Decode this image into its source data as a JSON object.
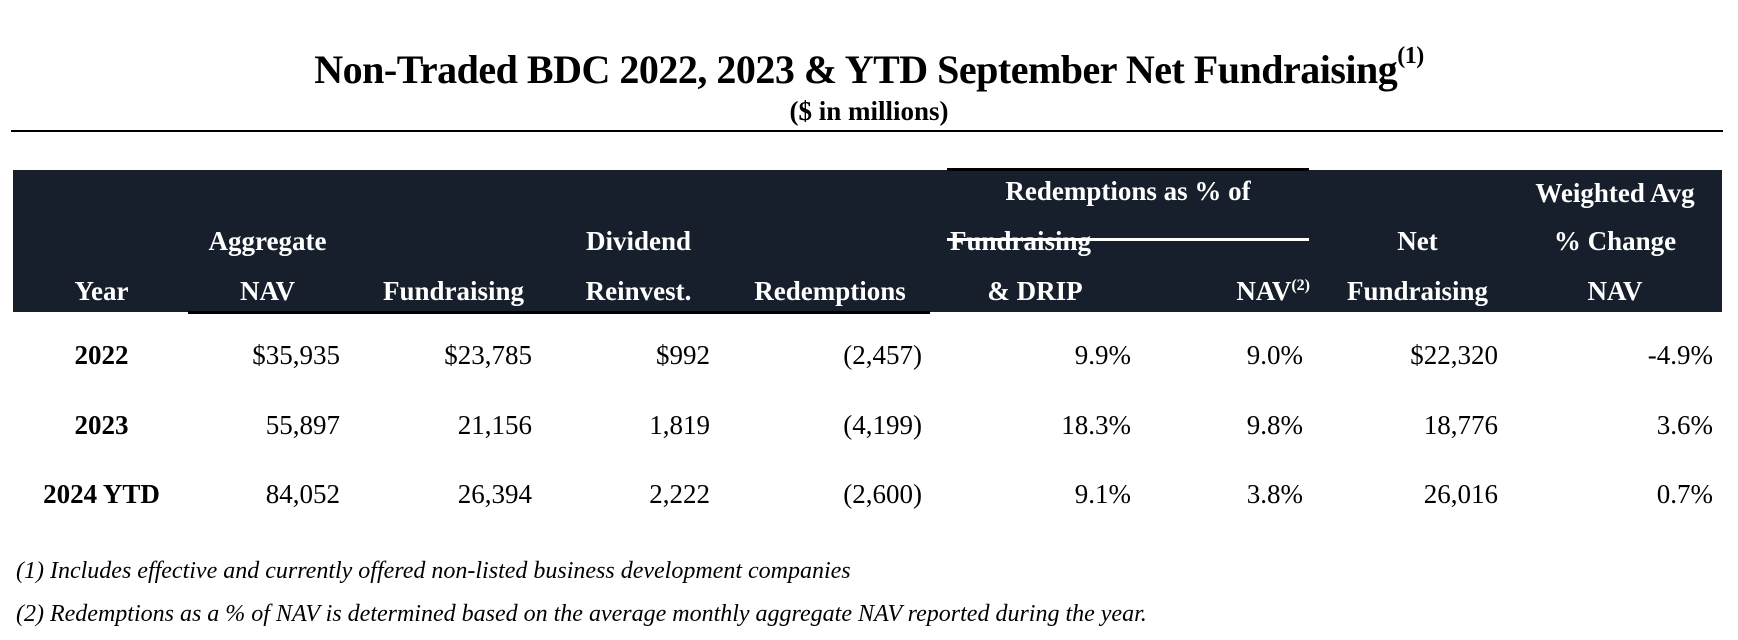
{
  "title": "Non-Traded BDC 2022, 2023 & YTD September Net Fundraising",
  "title_note": "(1)",
  "subtitle": "($ in millions)",
  "header": {
    "group": "Redemptions as % of",
    "year": "Year",
    "nav": [
      "Aggregate",
      "NAV"
    ],
    "fundraising": "Fundraising",
    "dividend": [
      "Dividend",
      "Reinvest."
    ],
    "redemptions": "Redemptions",
    "pct_fund": [
      "Fundraising",
      "& DRIP"
    ],
    "pct_nav": "NAV",
    "pct_nav_note": "(2)",
    "net": [
      "Net",
      "Fundraising"
    ],
    "wavg": [
      "Weighted Avg",
      "% Change",
      "NAV"
    ]
  },
  "rows": [
    {
      "year": "2022",
      "nav": "$35,935",
      "fund": "$23,785",
      "div": "$992",
      "red": "(2,457)",
      "pf": "9.9%",
      "pn": "9.0%",
      "net": "$22,320",
      "wavg": "-4.9%"
    },
    {
      "year": "2023",
      "nav": "55,897",
      "fund": "21,156",
      "div": "1,819",
      "red": "(4,199)",
      "pf": "18.3%",
      "pn": "9.8%",
      "net": "18,776",
      "wavg": "3.6%"
    },
    {
      "year": "2024 YTD",
      "nav": "84,052",
      "fund": "26,394",
      "div": "2,222",
      "red": "(2,600)",
      "pf": "9.1%",
      "pn": "3.8%",
      "net": "26,016",
      "wavg": "0.7%"
    }
  ],
  "footnotes": [
    "(1) Includes effective and currently offered non-listed business development companies",
    "(2) Redemptions as a % of NAV is determined based on the average monthly aggregate NAV reported during the year."
  ]
}
